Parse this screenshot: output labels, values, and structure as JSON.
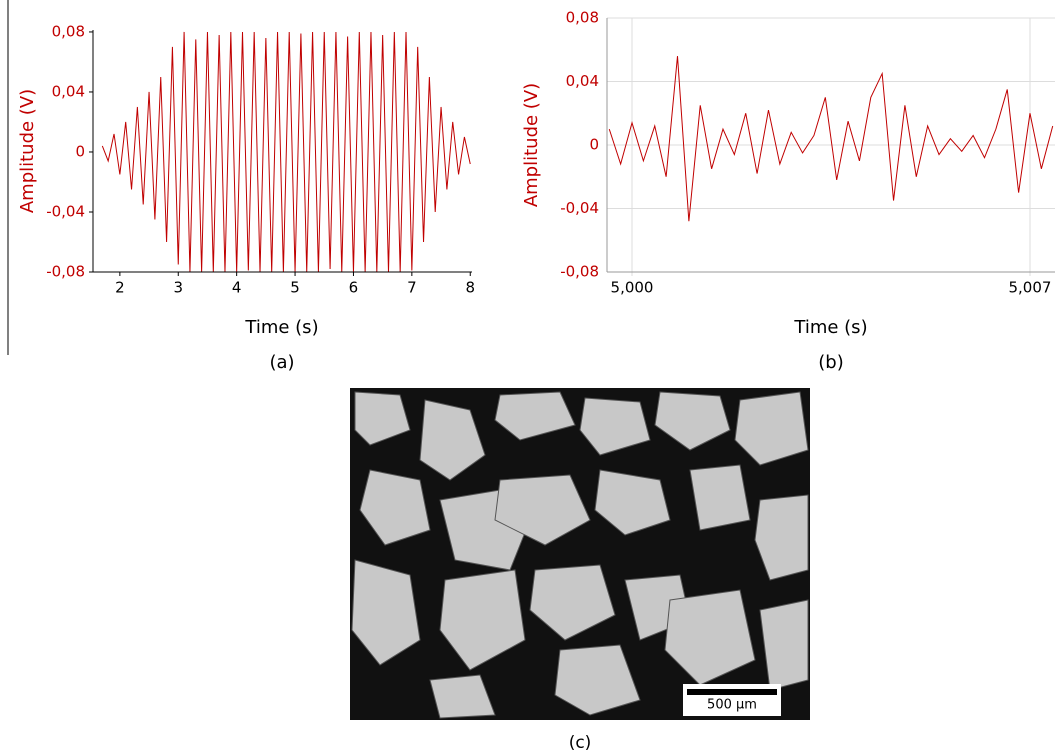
{
  "chart_data": [
    {
      "type": "line",
      "caption": "(a)",
      "x_label": "Time (s)",
      "y_label": "Amplitude (V)",
      "color": "#c00000",
      "grid": false,
      "xlim": [
        1.54,
        8.03
      ],
      "xticks": [
        2,
        3,
        4,
        5,
        6,
        7,
        8
      ],
      "ylim": [
        -0.08,
        0.0813
      ],
      "yticks": [
        {
          "value": 0.08,
          "label": "0,08"
        },
        {
          "value": 0.04,
          "label": "0,04"
        },
        0,
        {
          "value": -0.04,
          "label": "-0,04"
        },
        {
          "value": -0.08,
          "label": "-0,08"
        }
      ],
      "x": [
        1.7,
        1.8,
        1.9,
        2.0,
        2.1,
        2.2,
        2.3,
        2.4,
        2.5,
        2.6,
        2.7,
        2.8,
        2.9,
        3.0,
        3.1,
        3.2,
        3.3,
        3.4,
        3.5,
        3.6,
        3.7,
        3.8,
        3.9,
        4.0,
        4.1,
        4.2,
        4.3,
        4.4,
        4.5,
        4.6,
        4.7,
        4.8,
        4.9,
        5.0,
        5.1,
        5.2,
        5.3,
        5.4,
        5.5,
        5.6,
        5.7,
        5.8,
        5.9,
        6.0,
        6.1,
        6.2,
        6.3,
        6.4,
        6.5,
        6.6,
        6.7,
        6.8,
        6.9,
        7.0,
        7.1,
        7.2,
        7.3,
        7.4,
        7.5,
        7.6,
        7.7,
        7.8,
        7.9,
        8.0
      ],
      "values": [
        0.004,
        -0.006,
        0.012,
        -0.015,
        0.02,
        -0.025,
        0.03,
        -0.035,
        0.04,
        -0.045,
        0.05,
        -0.06,
        0.07,
        -0.075,
        0.08,
        -0.08,
        0.075,
        -0.08,
        0.08,
        -0.08,
        0.078,
        -0.08,
        0.08,
        -0.08,
        0.08,
        -0.079,
        0.08,
        -0.08,
        0.076,
        -0.08,
        0.08,
        -0.08,
        0.08,
        -0.08,
        0.079,
        -0.08,
        0.08,
        -0.08,
        0.08,
        -0.078,
        0.08,
        -0.08,
        0.077,
        -0.08,
        0.08,
        -0.08,
        0.08,
        -0.08,
        0.078,
        -0.08,
        0.08,
        -0.08,
        0.08,
        -0.079,
        0.07,
        -0.06,
        0.05,
        -0.04,
        0.03,
        -0.025,
        0.02,
        -0.015,
        0.01,
        -0.008
      ]
    },
    {
      "type": "line",
      "caption": "(b)",
      "x_label": "Time (s)",
      "y_label": "Amplitude (V)",
      "color": "#c00000",
      "grid": true,
      "xlim": [
        4.99956,
        5.00744
      ],
      "xticks": [
        {
          "value": 5.0,
          "label": "5,000"
        },
        {
          "value": 5.007,
          "label": "5,007"
        }
      ],
      "ylim": [
        -0.08,
        0.08
      ],
      "yticks": [
        {
          "value": 0.08,
          "label": "0,08"
        },
        {
          "value": 0.04,
          "label": "0,04"
        },
        0,
        {
          "value": -0.04,
          "label": "-0,04"
        },
        {
          "value": -0.08,
          "label": "-0,08"
        }
      ],
      "x": [
        4.9996,
        4.9998,
        5.0,
        5.0002,
        5.0004,
        5.0006,
        5.0008,
        5.001,
        5.0012,
        5.0014,
        5.0016,
        5.0018,
        5.002,
        5.0022,
        5.0024,
        5.0026,
        5.0028,
        5.003,
        5.0032,
        5.0034,
        5.0036,
        5.0038,
        5.004,
        5.0042,
        5.0044,
        5.0046,
        5.0048,
        5.005,
        5.0052,
        5.0054,
        5.0056,
        5.0058,
        5.006,
        5.0062,
        5.0064,
        5.0066,
        5.0068,
        5.007,
        5.0072,
        5.0074
      ],
      "values": [
        0.01,
        -0.012,
        0.014,
        -0.01,
        0.012,
        -0.02,
        0.056,
        -0.048,
        0.025,
        -0.015,
        0.01,
        -0.006,
        0.02,
        -0.018,
        0.022,
        -0.012,
        0.008,
        -0.005,
        0.006,
        0.03,
        -0.022,
        0.015,
        -0.01,
        0.03,
        0.045,
        -0.035,
        0.025,
        -0.02,
        0.012,
        -0.006,
        0.004,
        -0.004,
        0.006,
        -0.008,
        0.01,
        0.035,
        -0.03,
        0.02,
        -0.015,
        0.012
      ]
    }
  ],
  "image": {
    "scale_bar": "500 µm",
    "caption": "(c)"
  }
}
